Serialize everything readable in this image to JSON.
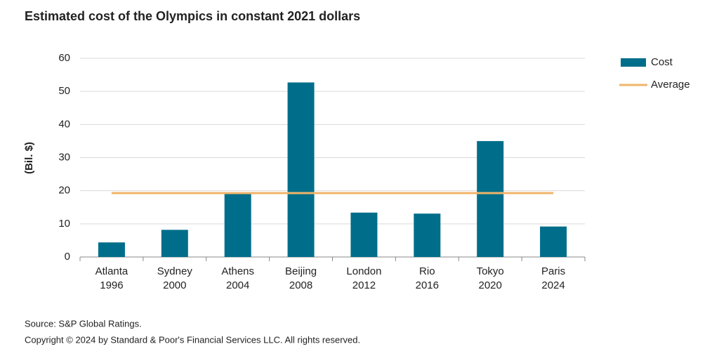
{
  "chart_data": {
    "type": "bar",
    "title": "Estimated cost of the Olympics in constant 2021 dollars",
    "y_label": "(Bil. $)",
    "categories": [
      "Atlanta 1996",
      "Sydney 2000",
      "Athens 2004",
      "Beijing 2008",
      "London 2012",
      "Rio 2016",
      "Tokyo 2020",
      "Paris 2024"
    ],
    "series": [
      {
        "name": "Cost",
        "type": "bar",
        "color": "#006e8a",
        "values": [
          4.4,
          8.2,
          19.0,
          52.7,
          13.4,
          13.1,
          35.0,
          9.2
        ]
      },
      {
        "name": "Average",
        "type": "line",
        "color": "#f0b46a",
        "values": [
          19.3,
          19.3,
          19.3,
          19.3,
          19.3,
          19.3,
          19.3,
          19.3
        ]
      }
    ],
    "ylim": [
      0,
      60
    ],
    "yticks": [
      0,
      10,
      20,
      30,
      40,
      50,
      60
    ],
    "grid": true,
    "legend": "right",
    "notes": [
      "Source: S&P Global Ratings.",
      "Copyright © 2024 by Standard & Poor's Financial Services LLC. All rights reserved."
    ]
  }
}
